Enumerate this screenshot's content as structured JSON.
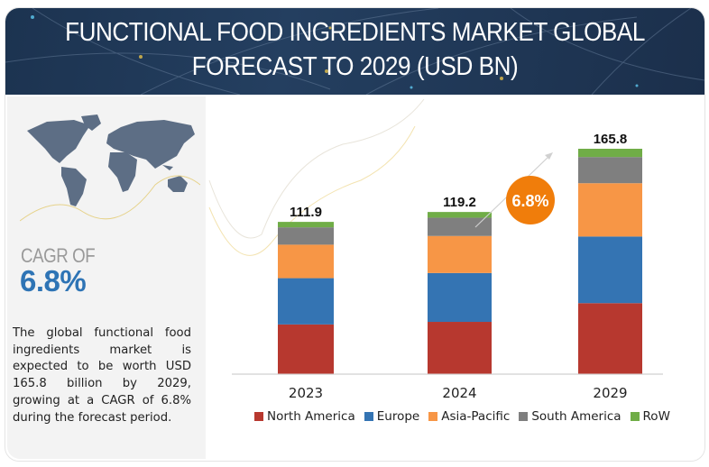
{
  "header": {
    "title_line1": "FUNCTIONAL FOOD INGREDIENTS MARKET GLOBAL",
    "title_line2": "FORECAST TO 2029 (USD BN)"
  },
  "sidebar": {
    "cagr_label": "CAGR OF",
    "cagr_value": "6.8%",
    "description": "The global functional food ingredients market is expected to be worth USD 165.8 billion by 2029, growing at a CAGR of 6.8% during the forecast period.",
    "map_icon": "world-map"
  },
  "chart_data": {
    "type": "bar",
    "stacked": true,
    "title": "FUNCTIONAL FOOD INGREDIENTS MARKET GLOBAL FORECAST TO 2029 (USD BN)",
    "categories": [
      "2023",
      "2024",
      "2029"
    ],
    "totals": [
      "111.9",
      "119.2",
      "165.8"
    ],
    "series": [
      {
        "name": "North America",
        "color": "#b7382f",
        "values": [
          36.3,
          38.2,
          52.0
        ]
      },
      {
        "name": "Europe",
        "color": "#3474b3",
        "values": [
          34.1,
          36.0,
          49.1
        ]
      },
      {
        "name": "Asia-Pacific",
        "color": "#f79646",
        "values": [
          24.7,
          27.3,
          39.3
        ]
      },
      {
        "name": "South America",
        "color": "#7f7f7f",
        "values": [
          12.8,
          13.5,
          19.3
        ]
      },
      {
        "name": "RoW",
        "color": "#70ad47",
        "values": [
          4.0,
          4.2,
          6.1
        ]
      }
    ],
    "annotation": {
      "label": "6.8%",
      "color": "#f07d0b"
    },
    "legend_position": "bottom",
    "grid": false,
    "ylim": [
      0,
      165.8
    ]
  }
}
